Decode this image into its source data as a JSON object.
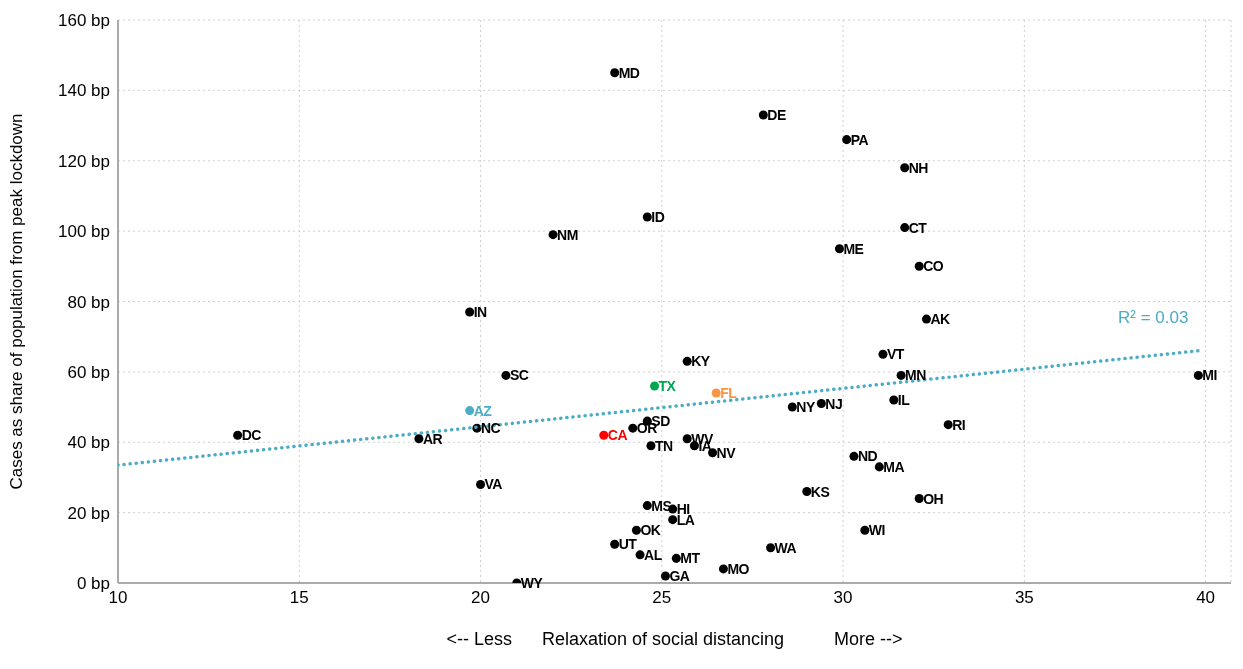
{
  "chart_data": {
    "type": "scatter",
    "xlabel": "<-- Less      Relaxation of social distancing          More -->",
    "ylabel": "Cases as share of population from peak lockdown",
    "xlim": [
      10,
      40.7
    ],
    "xticks": [
      10,
      15,
      20,
      25,
      30,
      35,
      40
    ],
    "ylim": [
      0,
      160
    ],
    "yticks": [
      {
        "value": 0,
        "label": "0 bp"
      },
      {
        "value": 20,
        "label": "20 bp"
      },
      {
        "value": 40,
        "label": "40 bp"
      },
      {
        "value": 60,
        "label": "60 bp"
      },
      {
        "value": 80,
        "label": "80 bp"
      },
      {
        "value": 100,
        "label": "100 bp"
      },
      {
        "value": 120,
        "label": "120 bp"
      },
      {
        "value": 140,
        "label": "140 bp"
      },
      {
        "value": 160,
        "label": "160 bp"
      }
    ],
    "grid": true,
    "marker": "circle",
    "series": [
      {
        "x": [
          23.7,
          27.8,
          30.1,
          31.7,
          24.6,
          22.0,
          31.7,
          29.9,
          32.1,
          19.7,
          32.3,
          25.7,
          31.1,
          20.7,
          31.6,
          39.8,
          24.8,
          26.5,
          31.4,
          19.7,
          28.6,
          29.4,
          24.6,
          24.2,
          19.9,
          32.9,
          13.3,
          18.3,
          23.4,
          24.7,
          25.7,
          25.9,
          26.4,
          30.3,
          31.0,
          20.0,
          29.0,
          32.1,
          24.6,
          25.3,
          25.3,
          30.6,
          24.3,
          23.7,
          28.0,
          24.4,
          25.4,
          26.7,
          25.1,
          21.0
        ],
        "values": [
          145,
          133,
          126,
          118,
          104,
          99,
          101,
          95,
          90,
          77,
          75,
          63,
          65,
          59,
          59,
          59,
          56,
          54,
          52,
          49,
          50,
          51,
          46,
          44,
          44,
          45,
          42,
          41,
          42,
          39,
          41,
          39,
          37,
          36,
          33,
          28,
          26,
          24,
          22,
          21,
          18,
          15,
          15,
          11,
          10,
          8,
          7,
          4,
          2,
          0
        ],
        "value_labels": [
          "MD",
          "DE",
          "PA",
          "NH",
          "ID",
          "NM",
          "CT",
          "ME",
          "CO",
          "IN",
          "AK",
          "KY",
          "VT",
          "SC",
          "MN",
          "MI",
          "TX",
          "FL",
          "IL",
          "AZ",
          "NY",
          "NJ",
          "SD",
          "OR",
          "NC",
          "RI",
          "DC",
          "AR",
          "CA",
          "TN",
          "WV",
          "IA",
          "NV",
          "ND",
          "MA",
          "VA",
          "KS",
          "OH",
          "MS",
          "HI",
          "LA",
          "WI",
          "OK",
          "UT",
          "WA",
          "AL",
          "MT",
          "MO",
          "GA",
          "WY"
        ],
        "colors": [
          "#000000",
          "#000000",
          "#000000",
          "#000000",
          "#000000",
          "#000000",
          "#000000",
          "#000000",
          "#000000",
          "#000000",
          "#000000",
          "#000000",
          "#000000",
          "#000000",
          "#000000",
          "#000000",
          "#00a651",
          "#f79646",
          "#000000",
          "#4bacc6",
          "#000000",
          "#000000",
          "#000000",
          "#000000",
          "#000000",
          "#000000",
          "#000000",
          "#000000",
          "#ff0000",
          "#000000",
          "#000000",
          "#000000",
          "#000000",
          "#000000",
          "#000000",
          "#000000",
          "#000000",
          "#000000",
          "#000000",
          "#000000",
          "#000000",
          "#000000",
          "#000000",
          "#000000",
          "#000000",
          "#000000",
          "#000000",
          "#000000",
          "#000000",
          "#000000"
        ]
      },
      {
        "type": "line",
        "x": [
          10,
          39.8
        ],
        "values": [
          33.5,
          66
        ],
        "color": "#4bacc6",
        "line_style": "dotted",
        "marker": "none"
      }
    ],
    "annotations": [
      "R² = 0.03"
    ]
  }
}
